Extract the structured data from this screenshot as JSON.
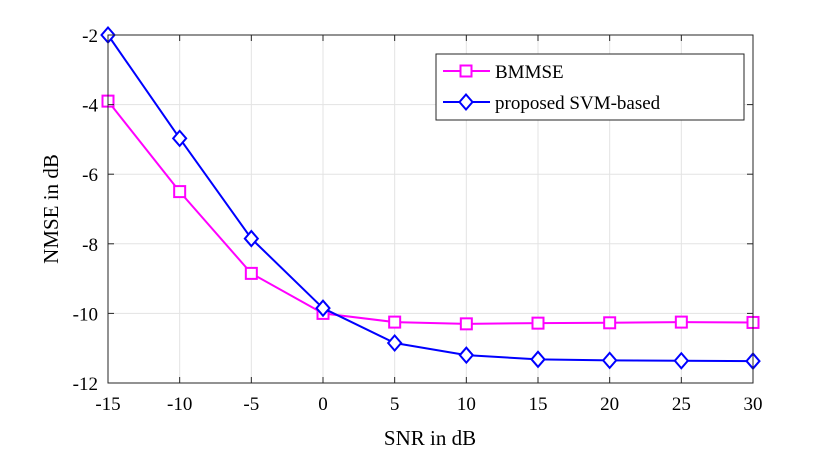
{
  "chart_data": {
    "type": "line",
    "title": "",
    "xlabel": "SNR in dB",
    "ylabel": "NMSE in dB",
    "x": [
      -15,
      -10,
      -5,
      0,
      5,
      10,
      15,
      20,
      25,
      30
    ],
    "xlim": [
      -15,
      30
    ],
    "ylim": [
      -12,
      -2
    ],
    "xticks": [
      "-15",
      "-10",
      "-5",
      "0",
      "5",
      "10",
      "15",
      "20",
      "25",
      "30"
    ],
    "yticks": [
      "-2",
      "-4",
      "-6",
      "-8",
      "-10",
      "-12"
    ],
    "grid": true,
    "legend_position": "top-right",
    "series": [
      {
        "name": "BMMSE",
        "color": "#ff00ff",
        "marker": "square",
        "values": [
          -3.9,
          -6.5,
          -8.85,
          -10.0,
          -10.25,
          -10.3,
          -10.28,
          -10.27,
          -10.25,
          -10.26
        ]
      },
      {
        "name": "proposed SVM-based",
        "color": "#0000ff",
        "marker": "diamond",
        "values": [
          -2.0,
          -4.97,
          -7.85,
          -9.85,
          -10.85,
          -11.2,
          -11.32,
          -11.35,
          -11.36,
          -11.37
        ]
      }
    ]
  }
}
